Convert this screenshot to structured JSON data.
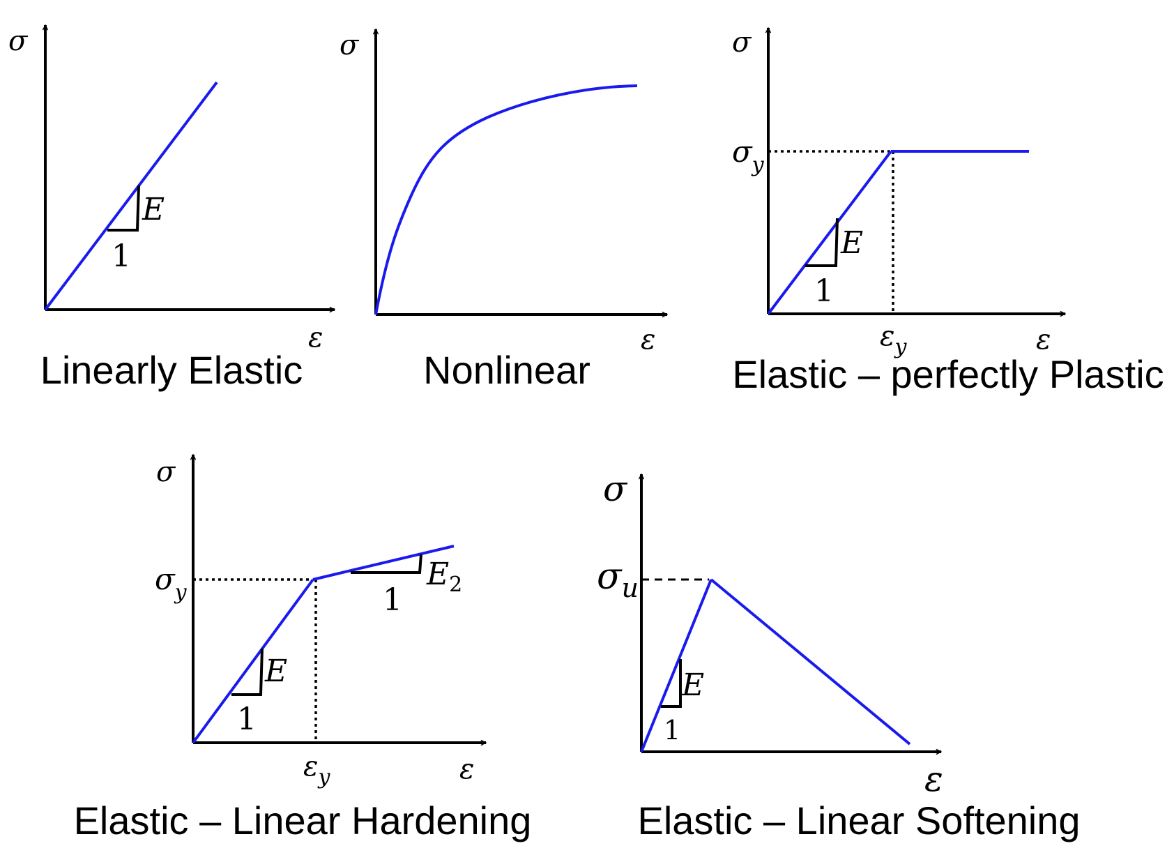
{
  "symbols": {
    "sigma": "σ",
    "epsilon": "ε",
    "modulus": "E",
    "one": "1",
    "y_sub": "y",
    "u_sub": "u",
    "two_sub": "2"
  },
  "panels": [
    {
      "id": "linear-elastic",
      "caption": "Linearly Elastic"
    },
    {
      "id": "nonlinear",
      "caption": "Nonlinear"
    },
    {
      "id": "elastic-perfectly-plastic",
      "caption": "Elastic – perfectly Plastic"
    },
    {
      "id": "elastic-linear-hardening",
      "caption": "Elastic – Linear Hardening"
    },
    {
      "id": "elastic-linear-softening",
      "caption": "Elastic – Linear Softening"
    }
  ],
  "colors": {
    "curve": "#1a1aee",
    "axes": "#000000"
  }
}
